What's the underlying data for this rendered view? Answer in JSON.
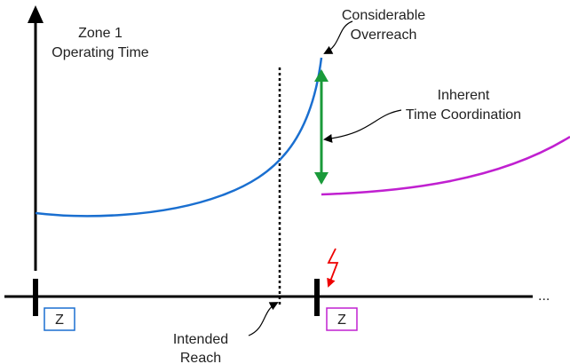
{
  "labels": {
    "axis_title": [
      "Zone 1",
      "Operating Time"
    ],
    "overreach": [
      "Considerable",
      "Overreach"
    ],
    "coordination": [
      "Inherent",
      "Time Coordination"
    ],
    "reach": [
      "Intended",
      "Reach"
    ],
    "relay_1": "Z",
    "relay_2": "Z",
    "continuation": "..."
  }
}
